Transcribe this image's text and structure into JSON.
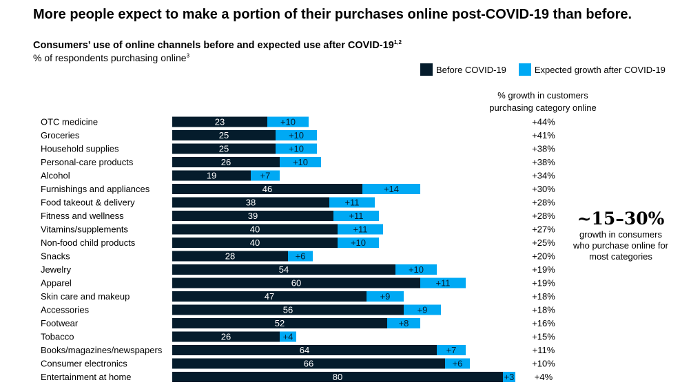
{
  "headline": "More people expect to make a portion of their purchases online post-COVID-19 than before.",
  "subtitle": "Consumers’ use of online channels before and expected use after COVID-19",
  "subtitle_sup": "1,2",
  "unit": "% of respondents purchasing online",
  "unit_sup": "3",
  "legend": {
    "before": "Before COVID-19",
    "after": "Expected growth after COVID-19"
  },
  "growth_header": "% growth in customers purchasing category online",
  "callout": {
    "big": "~15–30%",
    "small": "growth in consumers who purchase online for most categories"
  },
  "colors": {
    "before": "#051c2c",
    "after": "#00a9f4"
  },
  "chart_data": {
    "type": "bar",
    "orientation": "horizontal",
    "stacked": true,
    "categories": [
      "OTC medicine",
      "Groceries",
      "Household supplies",
      "Personal-care products",
      "Alcohol",
      "Furnishings and appliances",
      "Food takeout & delivery",
      "Fitness and wellness",
      "Vitamins/supplements",
      "Non-food child products",
      "Snacks",
      "Jewelry",
      "Apparel",
      "Skin care and makeup",
      "Accessories",
      "Footwear",
      "Tobacco",
      "Books/magazines/newspapers",
      "Consumer electronics",
      "Entertainment at home"
    ],
    "series": [
      {
        "name": "Before COVID-19",
        "values": [
          23,
          25,
          25,
          26,
          19,
          46,
          38,
          39,
          40,
          40,
          28,
          54,
          60,
          47,
          56,
          52,
          26,
          64,
          66,
          80
        ]
      },
      {
        "name": "Expected growth after COVID-19",
        "values": [
          10,
          10,
          10,
          10,
          7,
          14,
          11,
          11,
          11,
          10,
          6,
          10,
          11,
          9,
          9,
          8,
          4,
          7,
          6,
          3
        ]
      }
    ],
    "growth_labels": [
      "+44%",
      "+41%",
      "+38%",
      "+38%",
      "+34%",
      "+30%",
      "+28%",
      "+28%",
      "+27%",
      "+25%",
      "+20%",
      "+19%",
      "+19%",
      "+18%",
      "+18%",
      "+16%",
      "+15%",
      "+11%",
      "+10%",
      "+4%"
    ],
    "xlim": [
      0,
      83
    ]
  }
}
